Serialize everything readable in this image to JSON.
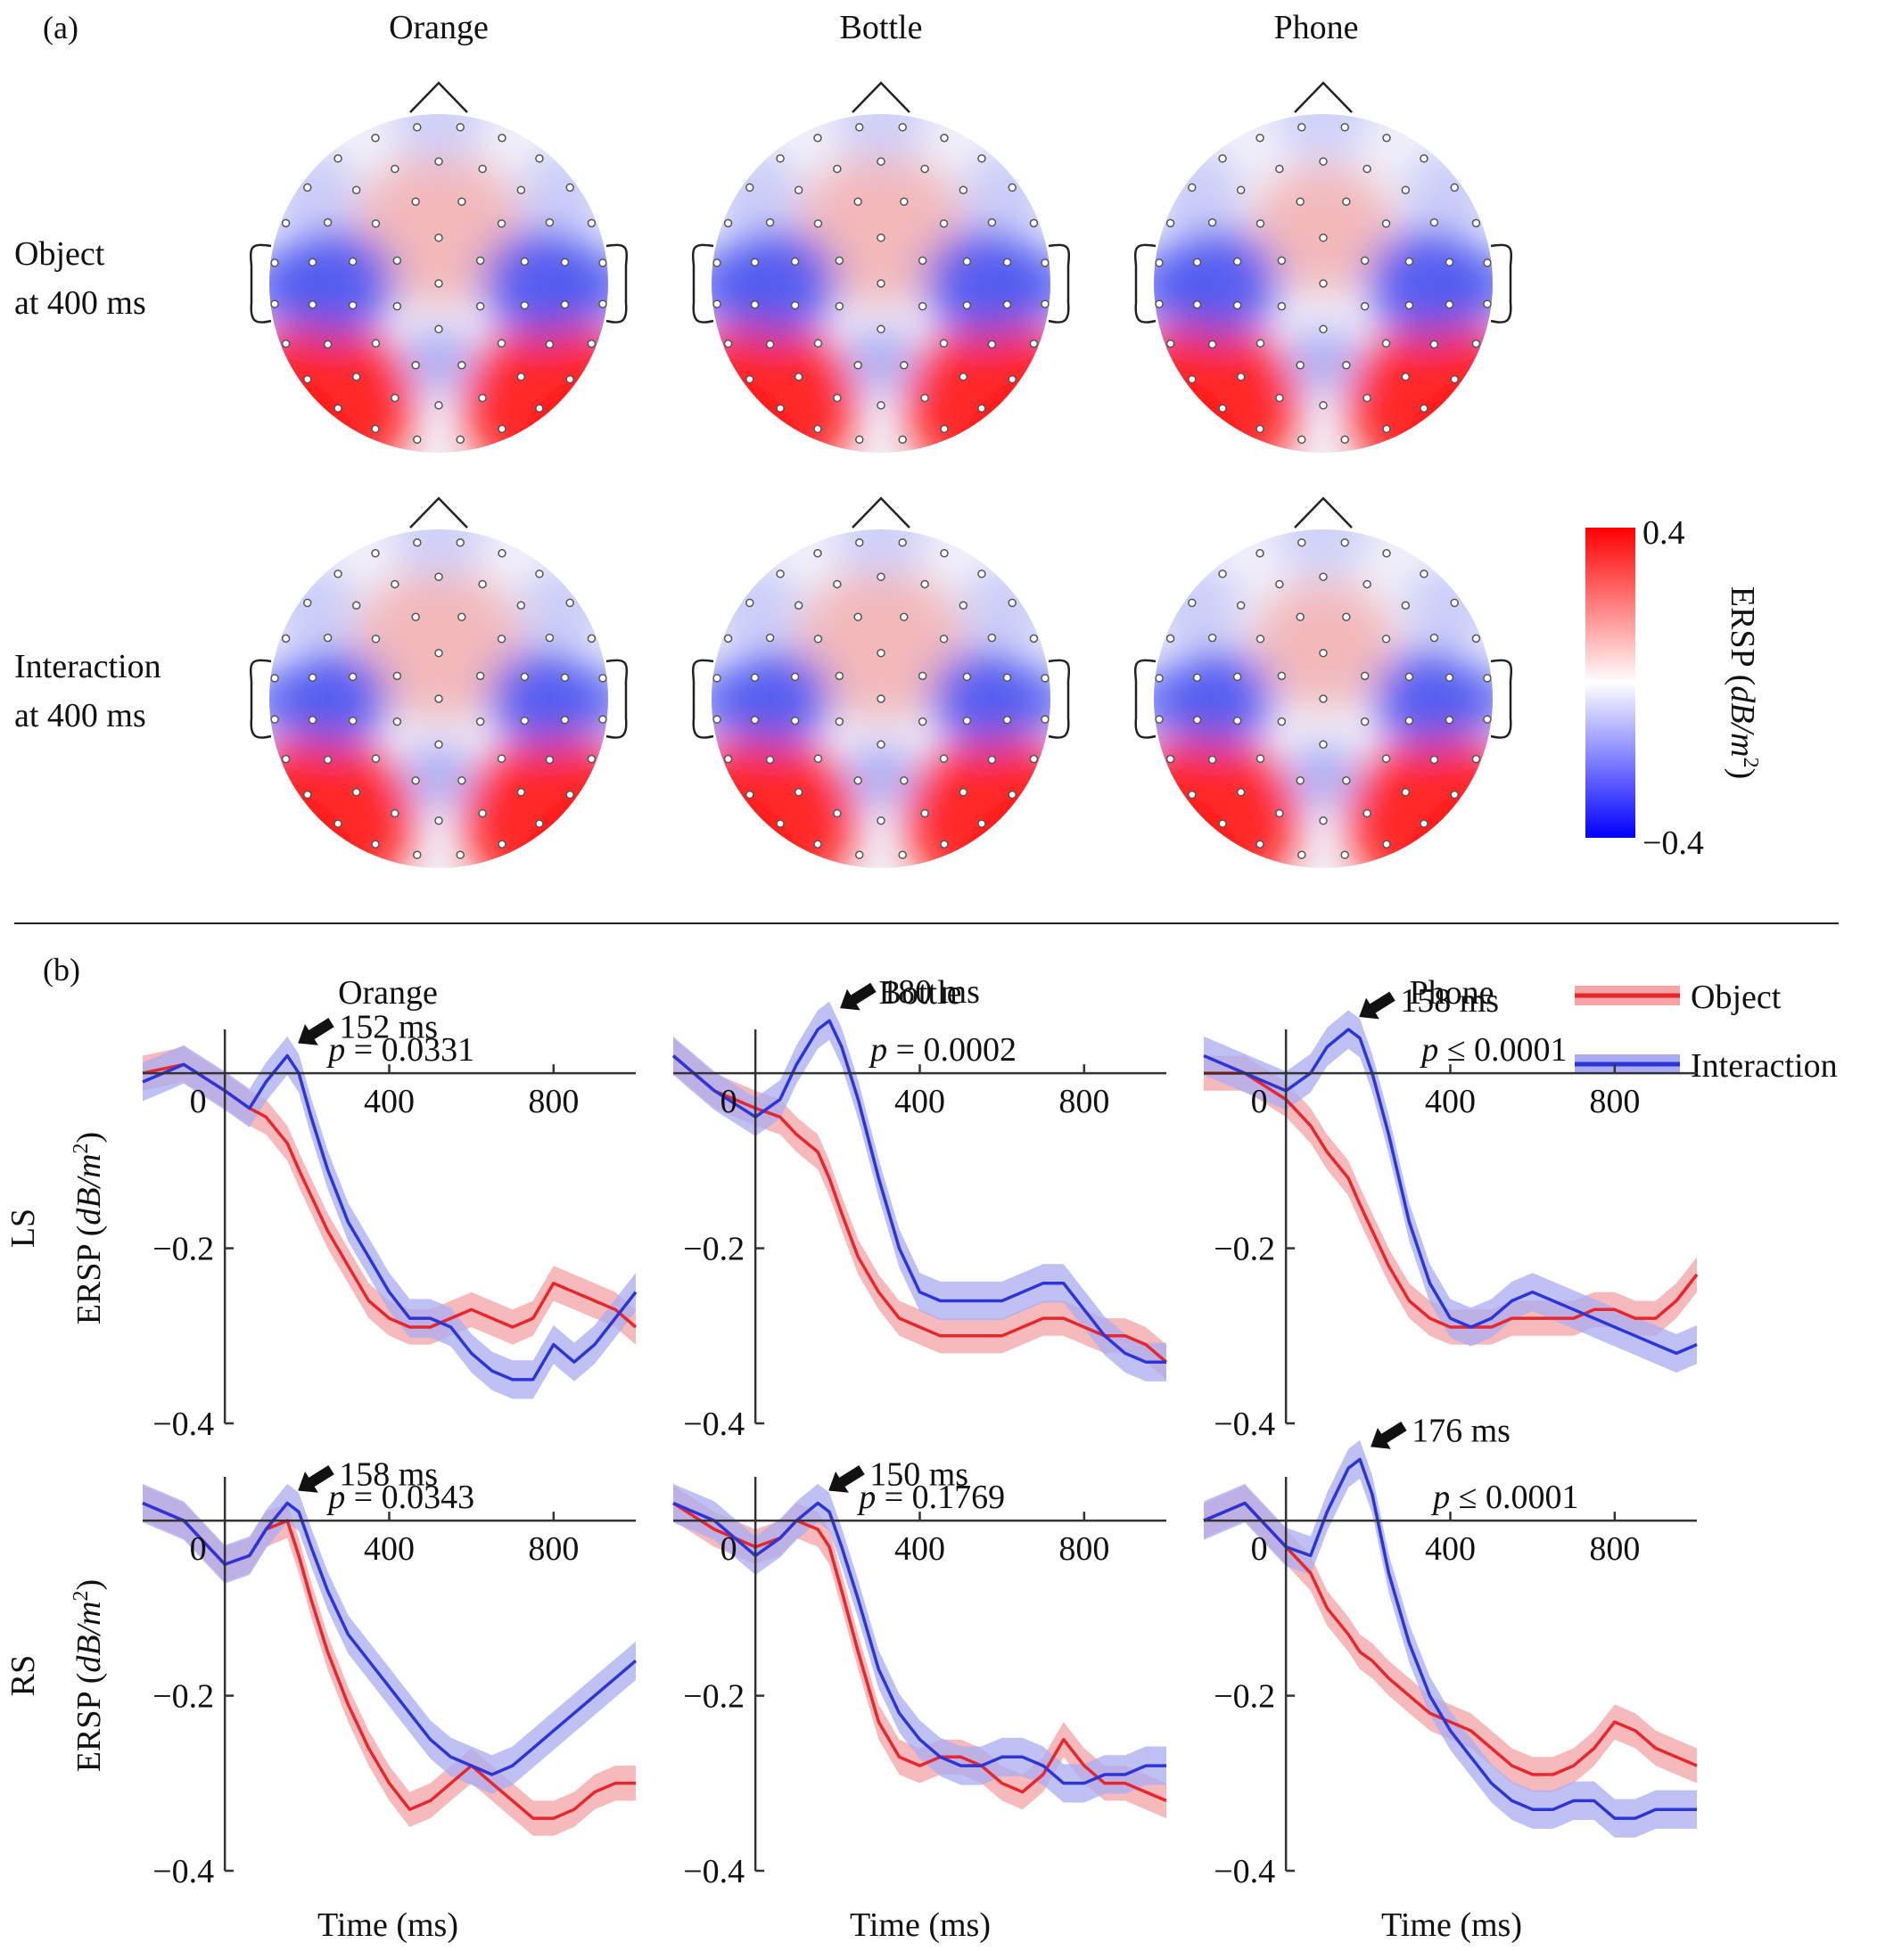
{
  "chart_data": {
    "type": "line",
    "panel_a": {
      "label": "(a)",
      "columns": [
        "Orange",
        "Bottle",
        "Phone"
      ],
      "rows": [
        {
          "line1": "Object",
          "line2": "at 400 ms"
        },
        {
          "line1": "Interaction",
          "line2": "at 400 ms"
        }
      ],
      "colorbar": {
        "max_label": "0.4",
        "min_label": "−0.4",
        "label_prefix": "ERSP (",
        "label_math": "dB/m",
        "label_exp": "2",
        "label_suffix": ")",
        "range": [
          -0.4,
          0.4
        ],
        "colors": [
          "#0000ff",
          "#ffffff",
          "#ff0000"
        ]
      }
    },
    "panel_b": {
      "label": "(b)",
      "columns": [
        "Orange",
        "Bottle",
        "Phone"
      ],
      "rows": [
        "LS",
        "RS"
      ],
      "ylabel_prefix": "ERSP (",
      "ylabel_math": "dB/m",
      "ylabel_exp": "2",
      "ylabel_suffix": ")",
      "xlabel": "Time (ms)",
      "xlim": [
        -200,
        1000
      ],
      "ylim": [
        -0.4,
        0.05
      ],
      "xticks": [
        0,
        400,
        800
      ],
      "xtick_labels": [
        "0",
        "400",
        "800"
      ],
      "yticks": [
        -0.2,
        -0.4
      ],
      "ytick_labels": [
        "−0.2",
        "−0.4"
      ],
      "legend": [
        {
          "name": "Object",
          "color": "#e8262b"
        },
        {
          "name": "Interaction",
          "color": "#2b35d8"
        }
      ],
      "series_colors": {
        "object": "#e8262b",
        "interaction": "#2b35d8",
        "object_band": "#f4a3a6",
        "interaction_band": "#a9acf2"
      },
      "x": [
        -200,
        -100,
        0,
        60,
        100,
        152,
        180,
        210,
        250,
        300,
        350,
        400,
        450,
        500,
        550,
        600,
        650,
        700,
        750,
        800,
        850,
        900,
        950,
        1000
      ],
      "panels": [
        {
          "row": "LS",
          "column": "Orange",
          "peak_label": "152 ms",
          "p_label": "= 0.0331",
          "p_prefix": "p",
          "object": [
            0.0,
            0.01,
            -0.02,
            -0.04,
            -0.05,
            -0.08,
            -0.11,
            -0.14,
            -0.18,
            -0.22,
            -0.26,
            -0.28,
            -0.29,
            -0.29,
            -0.28,
            -0.27,
            -0.28,
            -0.29,
            -0.28,
            -0.24,
            -0.25,
            -0.26,
            -0.27,
            -0.29
          ],
          "interaction": [
            -0.01,
            0.01,
            -0.02,
            -0.04,
            -0.01,
            0.02,
            0.0,
            -0.05,
            -0.11,
            -0.17,
            -0.21,
            -0.25,
            -0.28,
            -0.28,
            -0.29,
            -0.32,
            -0.34,
            -0.35,
            -0.35,
            -0.31,
            -0.33,
            -0.31,
            -0.28,
            -0.25
          ]
        },
        {
          "row": "LS",
          "column": "Bottle",
          "peak_label": "180 ms",
          "p_label": "= 0.0002",
          "p_prefix": "p",
          "object": [
            0.02,
            -0.02,
            -0.04,
            -0.05,
            -0.07,
            -0.09,
            -0.12,
            -0.16,
            -0.21,
            -0.25,
            -0.28,
            -0.29,
            -0.3,
            -0.3,
            -0.3,
            -0.3,
            -0.29,
            -0.28,
            -0.28,
            -0.29,
            -0.3,
            -0.3,
            -0.31,
            -0.33
          ],
          "interaction": [
            0.02,
            -0.02,
            -0.05,
            -0.03,
            0.01,
            0.05,
            0.06,
            0.03,
            -0.03,
            -0.12,
            -0.2,
            -0.25,
            -0.26,
            -0.26,
            -0.26,
            -0.26,
            -0.25,
            -0.24,
            -0.24,
            -0.27,
            -0.3,
            -0.32,
            -0.33,
            -0.33
          ]
        },
        {
          "row": "LS",
          "column": "Phone",
          "peak_label": "158 ms",
          "p_label": "≤ 0.0001",
          "p_prefix": "p",
          "object": [
            0.0,
            0.0,
            -0.03,
            -0.06,
            -0.09,
            -0.12,
            -0.15,
            -0.18,
            -0.22,
            -0.26,
            -0.28,
            -0.29,
            -0.29,
            -0.29,
            -0.28,
            -0.28,
            -0.28,
            -0.28,
            -0.27,
            -0.27,
            -0.28,
            -0.28,
            -0.26,
            -0.23
          ],
          "interaction": [
            0.02,
            0.0,
            -0.02,
            0.0,
            0.03,
            0.05,
            0.04,
            0.0,
            -0.07,
            -0.17,
            -0.24,
            -0.28,
            -0.29,
            -0.28,
            -0.26,
            -0.25,
            -0.26,
            -0.27,
            -0.28,
            -0.29,
            -0.3,
            -0.31,
            -0.32,
            -0.31
          ]
        },
        {
          "row": "RS",
          "column": "Orange",
          "peak_label": "158 ms",
          "p_label": "= 0.0343",
          "p_prefix": "p",
          "object": [
            0.02,
            0.0,
            -0.05,
            -0.04,
            -0.01,
            0.0,
            -0.04,
            -0.09,
            -0.15,
            -0.21,
            -0.26,
            -0.3,
            -0.33,
            -0.32,
            -0.3,
            -0.28,
            -0.3,
            -0.32,
            -0.34,
            -0.34,
            -0.33,
            -0.31,
            -0.3,
            -0.3
          ],
          "interaction": [
            0.02,
            0.0,
            -0.05,
            -0.04,
            -0.01,
            0.02,
            0.01,
            -0.03,
            -0.08,
            -0.13,
            -0.16,
            -0.19,
            -0.22,
            -0.25,
            -0.27,
            -0.28,
            -0.29,
            -0.28,
            -0.26,
            -0.24,
            -0.22,
            -0.2,
            -0.18,
            -0.16
          ]
        },
        {
          "row": "RS",
          "column": "Bottle",
          "peak_label": "150 ms",
          "p_label": "= 0.1769",
          "p_prefix": "p",
          "object": [
            0.02,
            -0.01,
            -0.03,
            -0.02,
            0.0,
            -0.01,
            -0.03,
            -0.08,
            -0.15,
            -0.23,
            -0.27,
            -0.28,
            -0.27,
            -0.27,
            -0.28,
            -0.3,
            -0.31,
            -0.29,
            -0.25,
            -0.28,
            -0.3,
            -0.3,
            -0.31,
            -0.32
          ],
          "interaction": [
            0.02,
            0.0,
            -0.04,
            -0.02,
            0.0,
            0.02,
            0.01,
            -0.03,
            -0.09,
            -0.17,
            -0.22,
            -0.25,
            -0.27,
            -0.28,
            -0.28,
            -0.27,
            -0.27,
            -0.28,
            -0.3,
            -0.3,
            -0.29,
            -0.29,
            -0.28,
            -0.28
          ]
        },
        {
          "row": "RS",
          "column": "Phone",
          "peak_label": "176 ms",
          "p_label": "≤ 0.0001",
          "p_prefix": "p",
          "object": [
            0.0,
            0.02,
            -0.03,
            -0.06,
            -0.1,
            -0.13,
            -0.15,
            -0.16,
            -0.18,
            -0.2,
            -0.22,
            -0.23,
            -0.24,
            -0.26,
            -0.28,
            -0.29,
            -0.29,
            -0.28,
            -0.26,
            -0.23,
            -0.24,
            -0.26,
            -0.27,
            -0.28
          ],
          "interaction": [
            0.0,
            0.02,
            -0.03,
            -0.04,
            0.01,
            0.06,
            0.07,
            0.03,
            -0.06,
            -0.14,
            -0.2,
            -0.24,
            -0.27,
            -0.3,
            -0.32,
            -0.33,
            -0.33,
            -0.32,
            -0.32,
            -0.34,
            -0.34,
            -0.33,
            -0.33,
            -0.33
          ]
        }
      ]
    }
  }
}
